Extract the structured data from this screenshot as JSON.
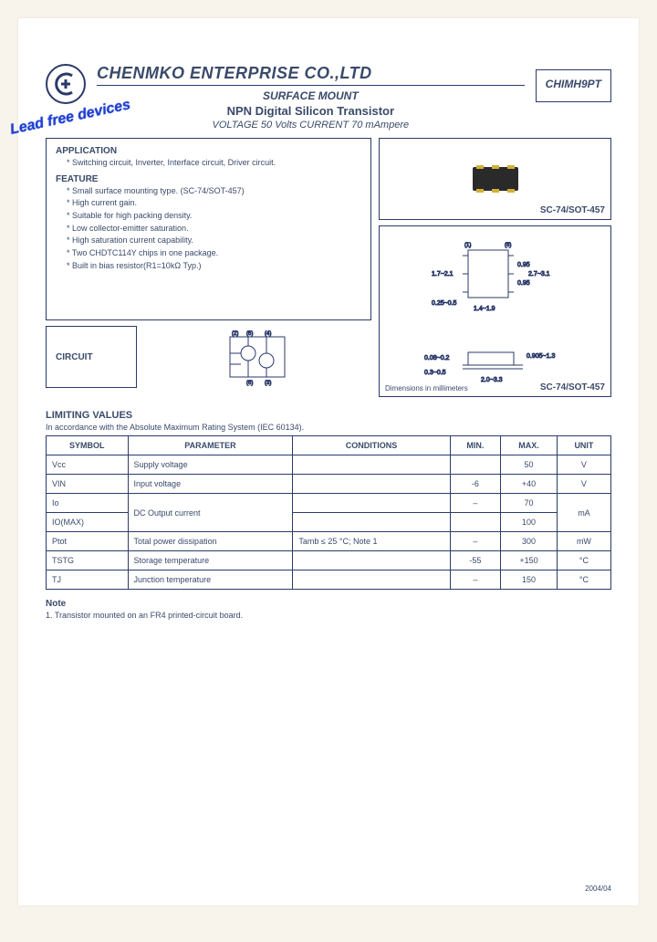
{
  "header": {
    "company": "CHENMKO ENTERPRISE CO.,LTD",
    "line1": "SURFACE MOUNT",
    "line2": "NPN Digital Silicon Transistor",
    "line3": "VOLTAGE  50 Volts    CURRENT 70 mAmpere",
    "part": "CHIMH9PT",
    "leadfree": "Lead free devices"
  },
  "application": {
    "title": "APPLICATION",
    "items": [
      "Switching circuit, Inverter, Interface circuit, Driver circuit."
    ]
  },
  "feature": {
    "title": "FEATURE",
    "items": [
      "Small surface mounting type. (SC-74/SOT-457)",
      "High current gain.",
      "Suitable for high packing density.",
      "Low collector-emitter saturation.",
      "High saturation current capability.",
      "Two CHDTC114Y chips in one package.",
      "Built in bias resistor(R1=10kΩ Typ.)"
    ]
  },
  "circuit_label": "CIRCUIT",
  "package_label": "SC-74/SOT-457",
  "dim_note": "Dimensions in millimeters",
  "dimensions": {
    "body_w_min": 1.7,
    "body_w_max": 2.1,
    "body_h_min": 2.7,
    "body_h_max": 3.1,
    "pitch": 0.95,
    "lead_span_min": 1.4,
    "lead_span_max": 1.9,
    "stand_min": 0.25,
    "stand_max": 0.5,
    "thick_min": 0.08,
    "thick_max": 0.2,
    "total_w_min": 2.0,
    "total_w_max": 3.3,
    "height_min": 0.905,
    "height_max": 1.3,
    "lead_h_min": 0.3,
    "lead_h_max": 0.5
  },
  "limits": {
    "title": "LIMITING VALUES",
    "sub": "In accordance with the Absolute Maximum Rating System (IEC 60134).",
    "headers": [
      "SYMBOL",
      "PARAMETER",
      "CONDITIONS",
      "MIN.",
      "MAX.",
      "UNIT"
    ],
    "rows": [
      {
        "sym": "Vcc",
        "param": "Supply voltage",
        "cond": "",
        "min": "",
        "max": "50",
        "unit": "V",
        "rowspan": 1
      },
      {
        "sym": "VIN",
        "param": "Input voltage",
        "cond": "",
        "min": "-6",
        "max": "+40",
        "unit": "V",
        "rowspan": 1
      },
      {
        "sym": "Io",
        "param": "DC Output current",
        "cond": "",
        "min": "–",
        "max": "70",
        "unit": "mA",
        "rowspan": 2,
        "param_rowspan": 2,
        "unit_rowspan": 2
      },
      {
        "sym": "IO(MAX)",
        "param": "",
        "cond": "",
        "min": "",
        "max": "100",
        "unit": "",
        "sub": true
      },
      {
        "sym": "Ptot",
        "param": "Total power dissipation",
        "cond": "Tamb ≤ 25 °C; Note 1",
        "min": "–",
        "max": "300",
        "unit": "mW",
        "rowspan": 1
      },
      {
        "sym": "TSTG",
        "param": "Storage temperature",
        "cond": "",
        "min": "-55",
        "max": "+150",
        "unit": "°C",
        "rowspan": 1
      },
      {
        "sym": "TJ",
        "param": "Junction temperature",
        "cond": "",
        "min": "–",
        "max": "150",
        "unit": "°C",
        "rowspan": 1
      }
    ]
  },
  "note": {
    "title": "Note",
    "body": "1.   Transistor mounted on an FR4 printed-circuit board."
  },
  "date": "2004/04",
  "colors": {
    "text": "#3a4a6a",
    "border": "#2b3a6a",
    "leadfree": "#2040d0",
    "bg": "#f8f4ec"
  }
}
